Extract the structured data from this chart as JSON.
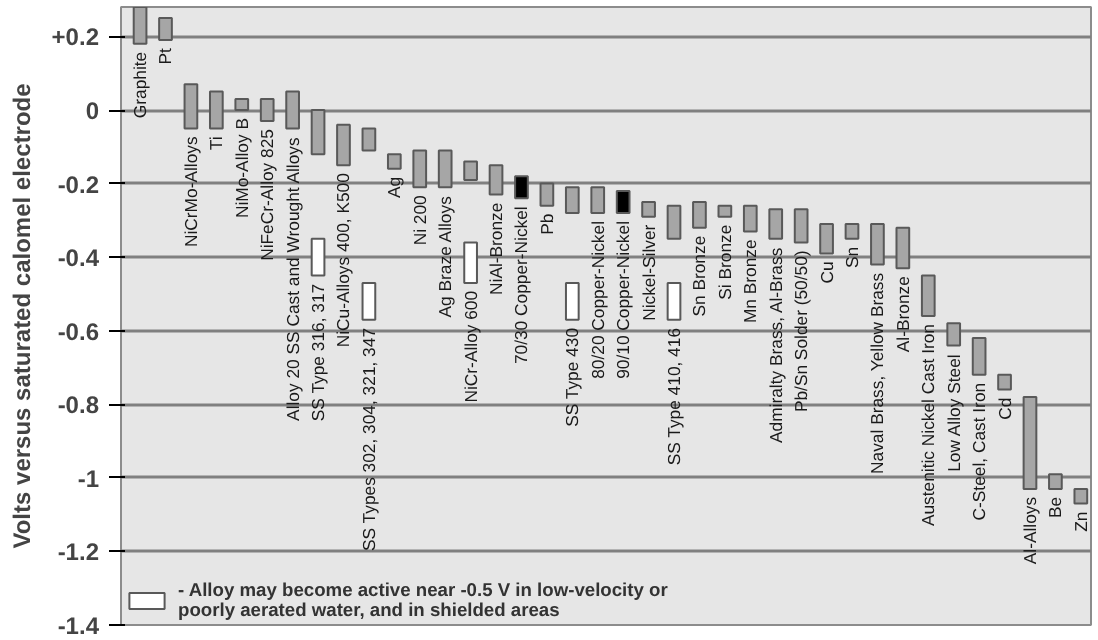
{
  "chart_data": {
    "type": "bar",
    "ylabel": "Volts versus saturated calomel electrode",
    "categories": [
      "Graphite",
      "Pt",
      "NiCrMo-Alloys",
      "Ti",
      "NiMo-Alloy B",
      "NiFeCr-Alloy 825",
      "Alloy 20 SS Cast and Wrought Alloys",
      "SS Type 316, 317",
      "NiCu-Alloys 400, K500",
      "SS Types 302, 304, 321, 347",
      "Ag",
      "Ni 200",
      "Ag Braze Alloys",
      "NiCr-Alloy 600",
      "NiAl-Bronze",
      "70/30 Copper-Nickel",
      "Pb",
      "SS Type 430",
      "80/20 Copper-Nickel",
      "90/10 Copper-Nickel",
      "Nickel-Silver",
      "SS Type 410, 416",
      "Sn Bronze",
      "Si Bronze",
      "Mn Bronze",
      "Admiralty Brass, Al-Brass",
      "Pb/Sn Solder (50/50)",
      "Cu",
      "Sn",
      "Naval Brass, Yellow Brass",
      "Al-Bronze",
      "Austenitic Nickel Cast Iron",
      "Low Alloy Steel",
      "C-Steel, Cast Iron",
      "Cd",
      "Al-Alloys",
      "Be",
      "Zn"
    ],
    "series": [
      {
        "colors": [
          "#a6a6a6",
          "#a6a6a6",
          "#a6a6a6",
          "#a6a6a6",
          "#a6a6a6",
          "#a6a6a6",
          "#a6a6a6",
          "#a6a6a6",
          "#a6a6a6",
          "#a6a6a6",
          "#a6a6a6",
          "#a6a6a6",
          "#a6a6a6",
          "#a6a6a6",
          "#a6a6a6",
          "#000000",
          "#a6a6a6",
          "#a6a6a6",
          "#a6a6a6",
          "#000000",
          "#a6a6a6",
          "#a6a6a6",
          "#a6a6a6",
          "#a6a6a6",
          "#a6a6a6",
          "#a6a6a6",
          "#a6a6a6",
          "#a6a6a6",
          "#a6a6a6",
          "#a6a6a6",
          "#a6a6a6",
          "#a6a6a6",
          "#a6a6a6",
          "#a6a6a6",
          "#a6a6a6",
          "#a6a6a6",
          "#a6a6a6",
          "#a6a6a6"
        ],
        "base": [
          0.18,
          0.19,
          -0.05,
          -0.05,
          0,
          -0.03,
          -0.05,
          -0.12,
          -0.15,
          -0.11,
          -0.16,
          -0.21,
          -0.21,
          -0.19,
          -0.23,
          -0.24,
          -0.26,
          -0.28,
          -0.28,
          -0.28,
          -0.29,
          -0.35,
          -0.32,
          -0.29,
          -0.33,
          -0.35,
          -0.36,
          -0.39,
          -0.35,
          -0.42,
          -0.43,
          -0.56,
          -0.64,
          -0.72,
          -0.76,
          -1.03,
          -1.03,
          -1.07
        ],
        "values": [
          0.1,
          0.06,
          0.12,
          0.1,
          0.03,
          0.06,
          0.1,
          0.12,
          0.11,
          0.06,
          0.04,
          0.1,
          0.1,
          0.05,
          0.08,
          0.06,
          0.06,
          0.07,
          0.07,
          0.06,
          0.04,
          0.09,
          0.07,
          0.03,
          0.07,
          0.08,
          0.09,
          0.08,
          0.04,
          0.11,
          0.11,
          0.11,
          0.06,
          0.1,
          0.04,
          0.25,
          0.04,
          0.04
        ]
      },
      {
        "name": "- Alloy may become active near -0.5 V in low-velocity or poorly aerated water, and in shielded areas",
        "color": "#ffffff",
        "base": [
          null,
          null,
          null,
          null,
          null,
          null,
          null,
          -0.45,
          null,
          -0.57,
          null,
          null,
          null,
          -0.47,
          null,
          null,
          null,
          -0.57,
          null,
          null,
          null,
          -0.57,
          null,
          null,
          null,
          null,
          null,
          null,
          null,
          null,
          null,
          null,
          null,
          null,
          null,
          null,
          null,
          null
        ],
        "values": [
          null,
          null,
          null,
          null,
          null,
          null,
          null,
          0.1,
          null,
          0.1,
          null,
          null,
          null,
          0.11,
          null,
          null,
          null,
          0.1,
          null,
          null,
          null,
          0.1,
          null,
          null,
          null,
          null,
          null,
          null,
          null,
          null,
          null,
          null,
          null,
          null,
          null,
          null,
          null,
          null
        ]
      }
    ],
    "ylim": [
      -1.4,
      0.28
    ],
    "yticks": [
      {
        "value": 0.2,
        "label": "+0.2"
      },
      0,
      -0.2,
      -0.4,
      -0.6,
      -0.8,
      -1.0,
      -1.2,
      -1.4
    ],
    "grid": "y",
    "legend": "bottom left",
    "tick_labels": "y"
  }
}
